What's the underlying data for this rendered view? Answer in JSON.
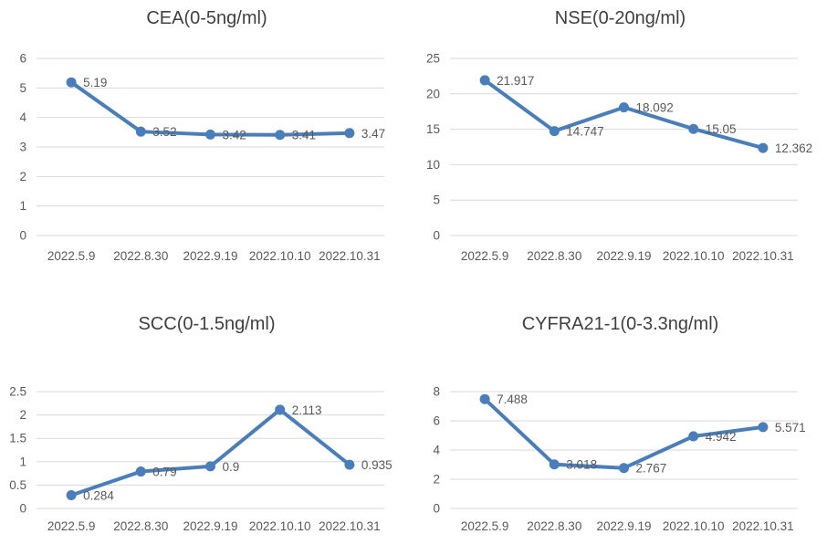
{
  "page": {
    "background": "#ffffff"
  },
  "colors": {
    "series_line": "#4a7ebb",
    "marker_fill": "#4a7ebb",
    "gridline": "#d9d9d9",
    "axis_tick_text": "#595959",
    "data_label_text": "#595959",
    "title_text": "#404040"
  },
  "chart_data": [
    {
      "type": "line",
      "title": "CEA(0-5ng/ml)",
      "categories": [
        "2022.5.9",
        "2022.8.30",
        "2022.9.19",
        "2022.10.10",
        "2022.10.31"
      ],
      "values": [
        5.19,
        3.52,
        3.42,
        3.41,
        3.47
      ],
      "point_labels": [
        "5.19",
        "3.52",
        "3.42",
        "3.41",
        "3.47"
      ],
      "ylim": [
        0,
        6
      ],
      "y_ticks": [
        "0",
        "1",
        "2",
        "3",
        "4",
        "5",
        "6"
      ],
      "grid": true,
      "legend": "none"
    },
    {
      "type": "line",
      "title": "NSE(0-20ng/ml)",
      "categories": [
        "2022.5.9",
        "2022.8.30",
        "2022.9.19",
        "2022.10.10",
        "2022.10.31"
      ],
      "values": [
        21.917,
        14.747,
        18.092,
        15.05,
        12.362
      ],
      "point_labels": [
        "21.917",
        "14.747",
        "18.092",
        "15.05",
        "12.362"
      ],
      "ylim": [
        0,
        25
      ],
      "y_ticks": [
        "0",
        "5",
        "10",
        "15",
        "20",
        "25"
      ],
      "grid": true,
      "legend": "none"
    },
    {
      "type": "line",
      "title": "SCC(0-1.5ng/ml)",
      "categories": [
        "2022.5.9",
        "2022.8.30",
        "2022.9.19",
        "2022.10.10",
        "2022.10.31"
      ],
      "values": [
        0.284,
        0.79,
        0.9,
        2.113,
        0.935
      ],
      "point_labels": [
        "0.284",
        "0.79",
        "0.9",
        "2.113",
        "0.935"
      ],
      "ylim": [
        0,
        2.5
      ],
      "y_ticks": [
        "0",
        "0.5",
        "1",
        "1.5",
        "2",
        "2.5"
      ],
      "grid": true,
      "legend": "none"
    },
    {
      "type": "line",
      "title": "CYFRA21-1(0-3.3ng/ml)",
      "categories": [
        "2022.5.9",
        "2022.8.30",
        "2022.9.19",
        "2022.10.10",
        "2022.10.31"
      ],
      "values": [
        7.488,
        3.018,
        2.767,
        4.942,
        5.571
      ],
      "point_labels": [
        "7.488",
        "3.018",
        "2.767",
        "4.942",
        "5.571"
      ],
      "ylim": [
        0,
        8
      ],
      "y_ticks": [
        "0",
        "2",
        "4",
        "6",
        "8"
      ],
      "grid": true,
      "legend": "none"
    }
  ]
}
